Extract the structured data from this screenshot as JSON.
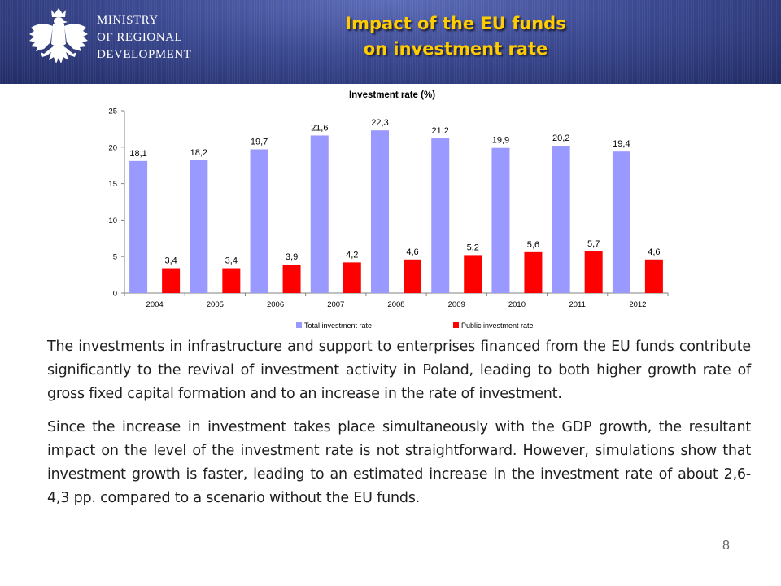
{
  "header": {
    "ministry_lines": [
      "MINISTRY",
      "OF REGIONAL",
      "DEVELOPMENT"
    ],
    "title_lines": [
      "Impact of the EU funds",
      "on investment rate"
    ],
    "logo_icon": "white-eagle-icon"
  },
  "chart_data": {
    "type": "bar",
    "title": "Investment rate (%)",
    "categories": [
      "2004",
      "2005",
      "2006",
      "2007",
      "2008",
      "2009",
      "2010",
      "2011",
      "2012"
    ],
    "series": [
      {
        "name": "Total investment rate",
        "color": "#9999ff",
        "values": [
          18.1,
          18.2,
          19.7,
          21.6,
          22.3,
          21.2,
          19.9,
          20.2,
          19.4
        ],
        "labels": [
          "18,1",
          "18,2",
          "19,7",
          "21,6",
          "22,3",
          "21,2",
          "19,9",
          "20,2",
          "19,4"
        ]
      },
      {
        "name": "Public investment rate",
        "color": "#ff0000",
        "values": [
          3.4,
          3.4,
          3.9,
          4.2,
          4.6,
          5.2,
          5.6,
          5.7,
          4.6
        ],
        "labels": [
          "3,4",
          "3,4",
          "3,9",
          "4,2",
          "4,6",
          "5,2",
          "5,6",
          "5,7",
          "4,6"
        ]
      }
    ],
    "ylim": [
      0,
      25
    ],
    "yticks": [
      "0",
      "5",
      "10",
      "15",
      "20",
      "25"
    ],
    "ytick_values": [
      0,
      5,
      10,
      15,
      20,
      25
    ],
    "grid": false,
    "legend_position": "bottom"
  },
  "body": {
    "paragraph1": "The investments in infrastructure and support to enterprises financed from the EU funds contribute significantly to the revival of investment activity in Poland, leading to both higher growth rate of gross fixed capital formation and to an increase in the rate of investment.",
    "paragraph2": "Since the increase in investment takes place simultaneously with the GDP growth, the resultant impact on the level of the investment rate is not straightforward. However, simulations show that investment growth is faster, leading to an estimated increase in the investment rate of about 2,6-4,3 pp. compared to a scenario without the EU funds."
  },
  "page_number": "8"
}
